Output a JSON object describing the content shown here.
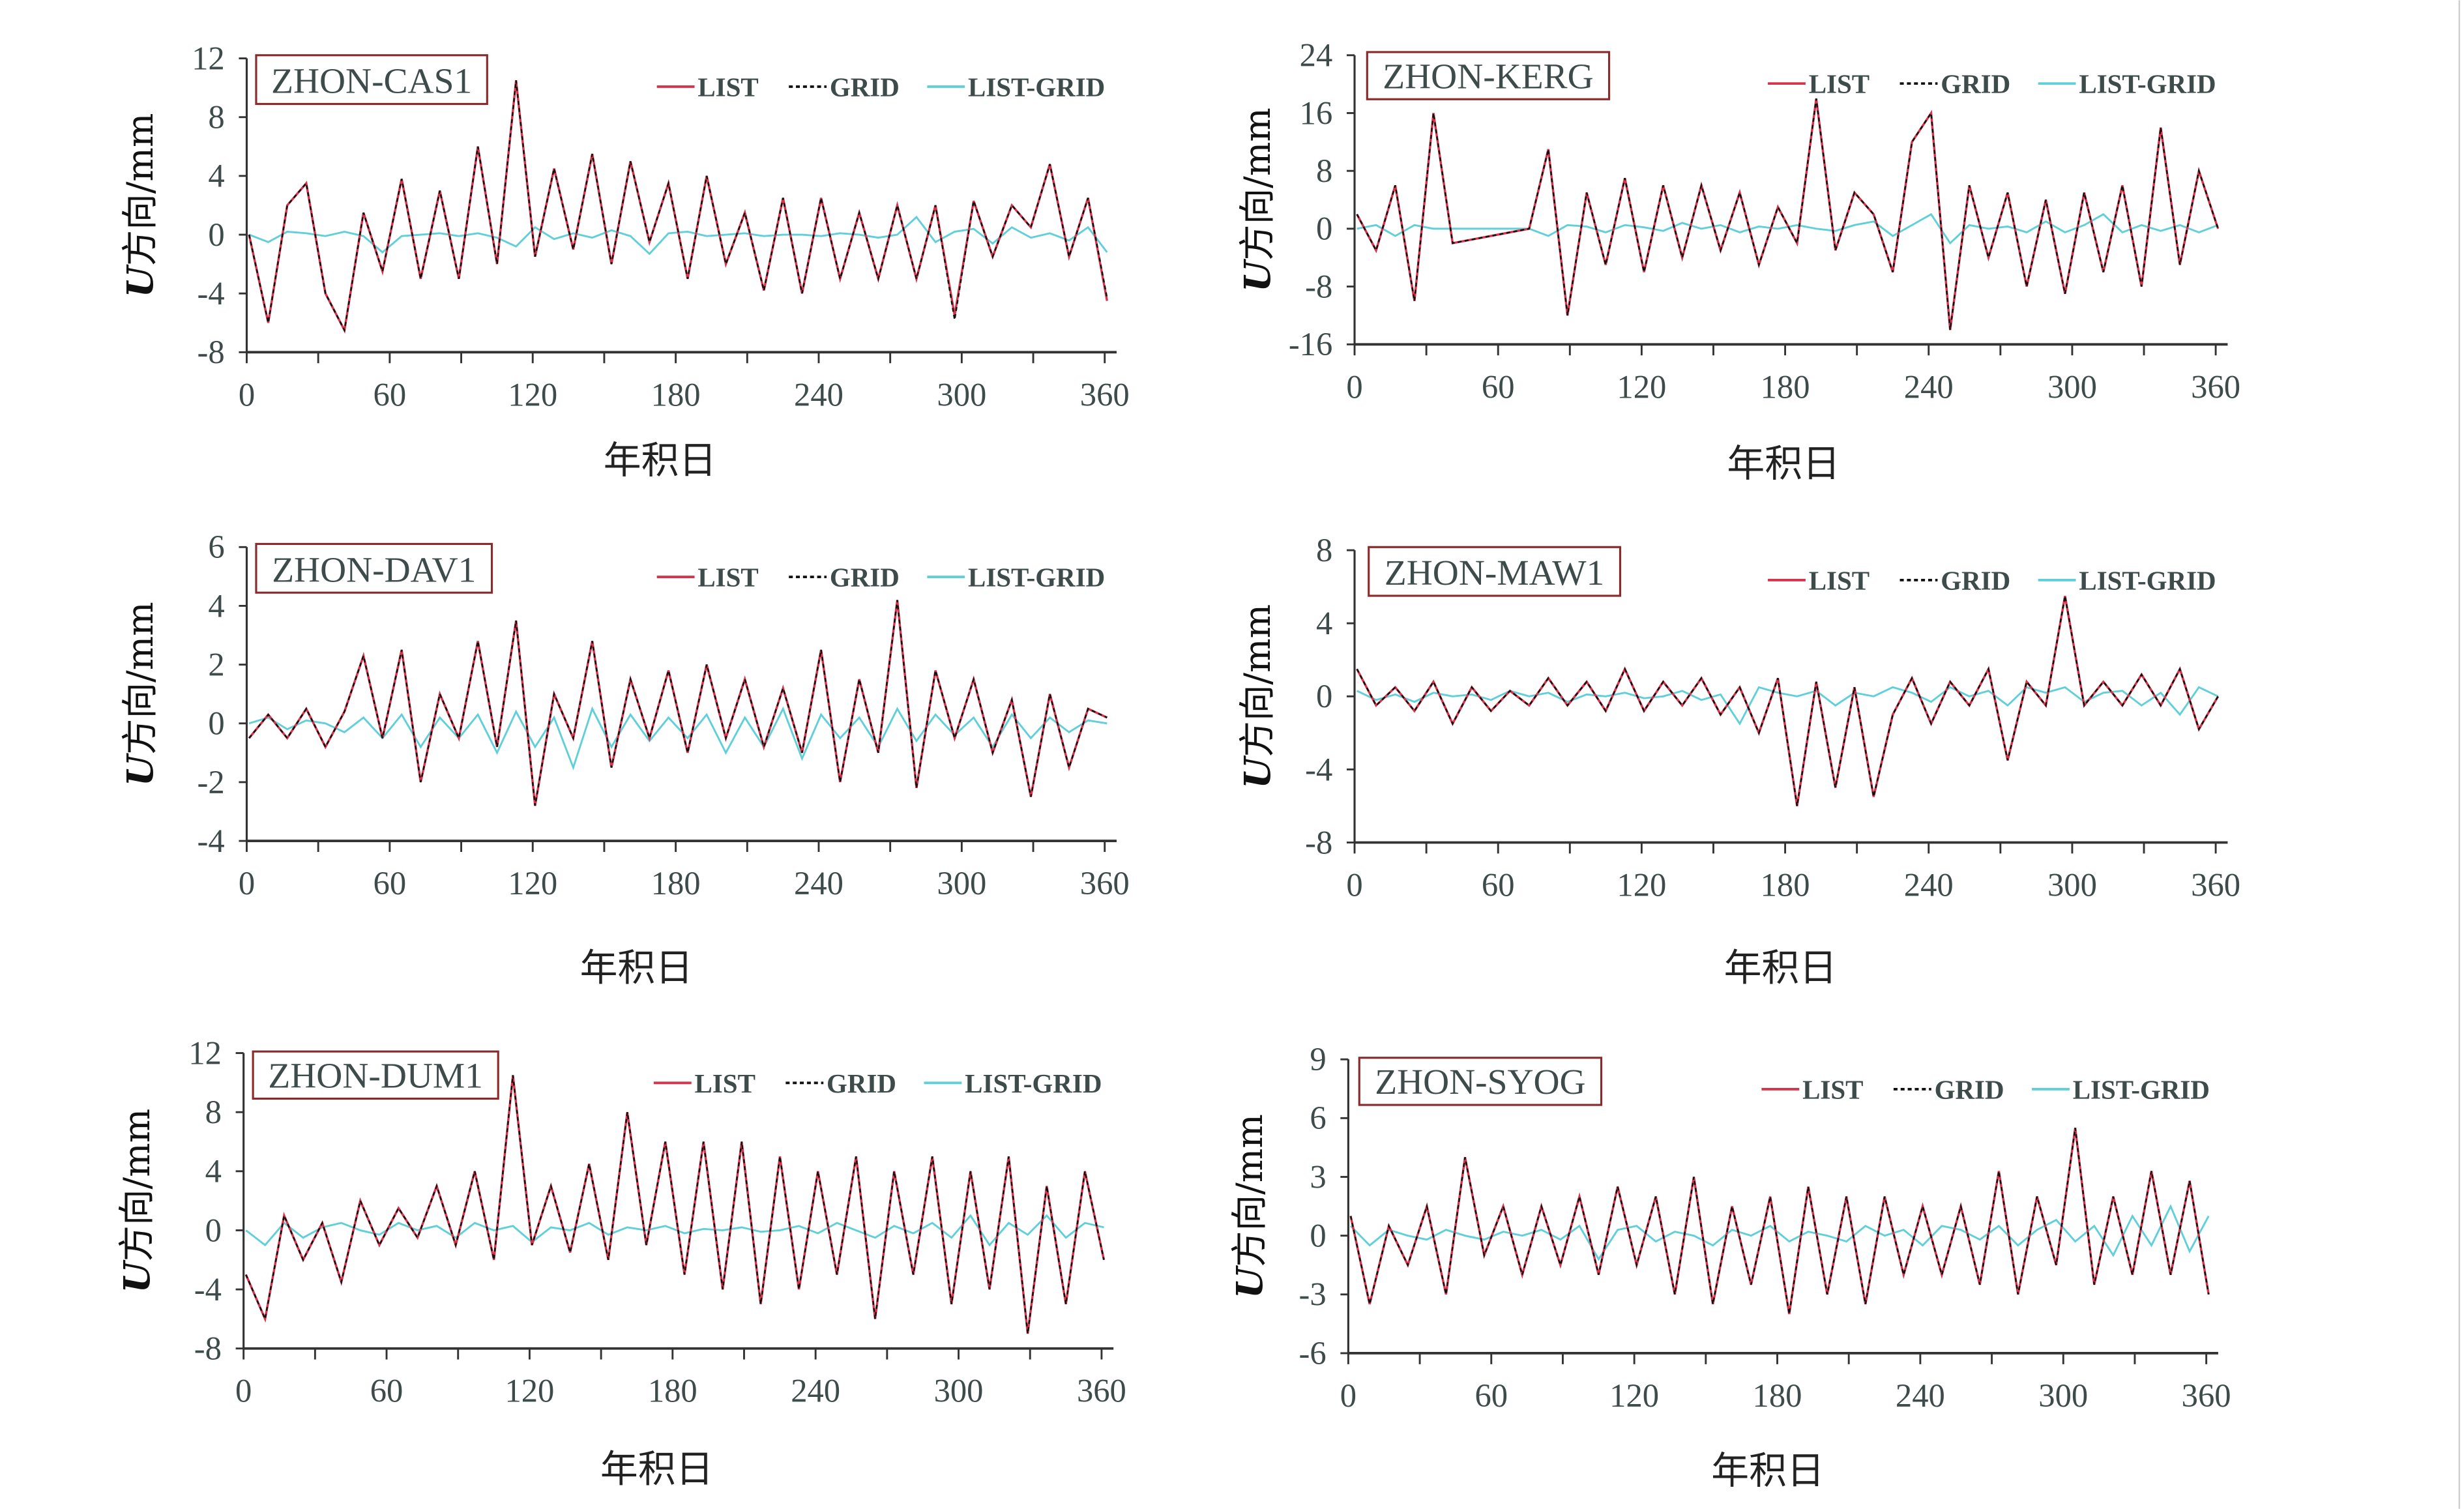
{
  "chart_data": [
    {
      "type": "line",
      "title": "ZHON-CAS1",
      "xlabel": "年积日",
      "ylabel_var": "U",
      "ylabel_rest": "方向/mm",
      "x_start": 1,
      "x_step": 8,
      "xlim": [
        0,
        365
      ],
      "ylim": [
        -8,
        12
      ],
      "x_ticks": [
        0,
        60,
        120,
        180,
        240,
        300,
        360
      ],
      "y_ticks": [
        -8,
        -4,
        0,
        4,
        8,
        12
      ],
      "legend_position": "top-right",
      "series": [
        {
          "name": "LIST",
          "values": [
            0,
            -6,
            2,
            3.5,
            -4,
            -6.5,
            1.5,
            -2.5,
            3.8,
            -3,
            3,
            -3,
            6,
            -2,
            10.5,
            -1.5,
            4.5,
            -1,
            5.5,
            -2,
            5,
            -0.5,
            3.5,
            -3,
            4,
            -2,
            1.5,
            -3.8,
            2.5,
            -4,
            2.5,
            -3,
            1.5,
            -3,
            2,
            -3,
            2,
            -5.5,
            2.3,
            -1.5,
            2,
            0.5,
            4.8,
            -1.5,
            2.5,
            -4.5
          ]
        },
        {
          "name": "GRID",
          "values": [
            0,
            -6,
            2,
            3.5,
            -4,
            -6.5,
            1.5,
            -2.5,
            3.8,
            -3,
            3,
            -3,
            6,
            -2,
            10.5,
            -1.5,
            4.5,
            -1,
            5.5,
            -2,
            5,
            -0.5,
            3.5,
            -3,
            4,
            -2,
            1.5,
            -3.8,
            2.5,
            -4,
            2.5,
            -3,
            1.5,
            -3,
            2,
            -3,
            2,
            -5.8,
            2.3,
            -1.5,
            2,
            0.5,
            4.8,
            -1.5,
            2.5,
            -4.3
          ]
        },
        {
          "name": "LIST-GRID",
          "values": [
            0,
            -0.5,
            0.2,
            0.1,
            -0.1,
            0.2,
            -0.1,
            -1.2,
            -0.1,
            0,
            0.1,
            -0.1,
            0.1,
            -0.2,
            -0.8,
            0.5,
            -0.3,
            0.1,
            -0.2,
            0.3,
            -0.1,
            -1.3,
            0.1,
            0.2,
            -0.1,
            0,
            0.1,
            -0.1,
            0,
            0,
            -0.1,
            0.1,
            0,
            -0.2,
            0,
            1.2,
            -0.5,
            0.2,
            0.4,
            -0.6,
            0.5,
            -0.2,
            0.1,
            -0.4,
            0.5,
            -1.2
          ]
        }
      ]
    },
    {
      "type": "line",
      "title": "ZHON-KERG",
      "xlabel": "年积日",
      "ylabel_var": "U",
      "ylabel_rest": "方向/mm",
      "x_start": 1,
      "x_step": 8,
      "xlim": [
        0,
        365
      ],
      "ylim": [
        -16,
        24
      ],
      "x_ticks": [
        0,
        60,
        120,
        180,
        240,
        300,
        360
      ],
      "y_ticks": [
        -16,
        -8,
        0,
        8,
        16,
        24
      ],
      "legend_position": "top-right",
      "series": [
        {
          "name": "LIST",
          "values": [
            2,
            -3,
            6,
            -10,
            16,
            -2,
            -1.5,
            -1,
            -0.5,
            0,
            11,
            -12,
            5,
            -5,
            7,
            -6,
            6,
            -4,
            6,
            -3,
            5,
            -5,
            3,
            -2,
            18,
            -3,
            5,
            2,
            -6,
            12,
            16,
            -14,
            6,
            -4,
            5,
            -8,
            4,
            -9,
            5,
            -6,
            6,
            -8,
            14,
            -5,
            8,
            0
          ]
        },
        {
          "name": "GRID",
          "values": [
            2,
            -3,
            6,
            -10,
            16,
            -2,
            -1.5,
            -1,
            -0.5,
            0,
            11,
            -12,
            5,
            -5,
            7,
            -6,
            6,
            -4,
            6,
            -3,
            5,
            -5,
            3,
            -2,
            18,
            -3,
            5,
            2,
            -6,
            12,
            16,
            -14,
            6,
            -4,
            5,
            -8,
            4,
            -9,
            5,
            -6,
            6,
            -8,
            14,
            -5,
            8,
            0
          ]
        },
        {
          "name": "LIST-GRID",
          "values": [
            0,
            0.5,
            -1,
            0.5,
            0,
            0,
            0,
            0,
            0,
            0,
            -1,
            0.5,
            0.3,
            -0.5,
            0.5,
            0.2,
            -0.3,
            0.8,
            0,
            0.5,
            -0.5,
            0.3,
            0,
            0.5,
            0,
            -0.3,
            0.5,
            1,
            -1,
            0.5,
            2,
            -2,
            0.5,
            0,
            0.3,
            -0.5,
            1,
            -0.5,
            0.5,
            2,
            -0.5,
            0.5,
            -0.3,
            0.5,
            -0.5,
            0.5
          ]
        }
      ]
    },
    {
      "type": "line",
      "title": "ZHON-DAV1",
      "xlabel": "年积日",
      "ylabel_var": "U",
      "ylabel_rest": "方向/mm",
      "x_start": 1,
      "x_step": 8,
      "xlim": [
        0,
        365
      ],
      "ylim": [
        -4,
        6
      ],
      "x_ticks": [
        0,
        60,
        120,
        180,
        240,
        300,
        360
      ],
      "y_ticks": [
        -4,
        -2,
        0,
        2,
        4,
        6
      ],
      "legend_position": "top-right",
      "series": [
        {
          "name": "LIST",
          "values": [
            -0.5,
            0.3,
            -0.5,
            0.5,
            -0.8,
            0.4,
            2.3,
            -0.5,
            2.5,
            -2,
            1,
            -0.5,
            2.8,
            -0.8,
            3.5,
            -2.8,
            1,
            -0.5,
            2.8,
            -1.5,
            1.5,
            -0.5,
            1.8,
            -1,
            2,
            -0.5,
            1.5,
            -0.8,
            1.2,
            -1,
            2.5,
            -2,
            1.5,
            -1,
            4.2,
            -2.2,
            1.8,
            -0.5,
            1.5,
            -1,
            0.8,
            -2.5,
            1,
            -1.5,
            0.5,
            0.2
          ]
        },
        {
          "name": "GRID",
          "values": [
            -0.5,
            0.3,
            -0.5,
            0.5,
            -0.8,
            0.4,
            2.3,
            -0.5,
            2.5,
            -2,
            1,
            -0.5,
            2.8,
            -0.8,
            3.5,
            -2.8,
            1,
            -0.5,
            2.8,
            -1.5,
            1.5,
            -0.5,
            1.8,
            -1,
            2,
            -0.5,
            1.5,
            -0.8,
            1.2,
            -1,
            2.5,
            -2,
            1.5,
            -1,
            4.2,
            -2.2,
            1.8,
            -0.5,
            1.5,
            -1,
            0.8,
            -2.5,
            1,
            -1.5,
            0.5,
            0.2
          ]
        },
        {
          "name": "LIST-GRID",
          "values": [
            0,
            0.2,
            -0.2,
            0.1,
            0,
            -0.3,
            0.2,
            -0.5,
            0.3,
            -0.8,
            0.2,
            -0.5,
            0.3,
            -1,
            0.4,
            -0.8,
            0.2,
            -1.5,
            0.5,
            -0.8,
            0.3,
            -0.6,
            0.2,
            -0.5,
            0.3,
            -1,
            0.2,
            -0.8,
            0.5,
            -1.2,
            0.3,
            -0.5,
            0.2,
            -0.8,
            0.5,
            -0.6,
            0.3,
            -0.4,
            0.2,
            -0.8,
            0.3,
            -0.5,
            0.2,
            -0.3,
            0.1,
            0
          ]
        }
      ]
    },
    {
      "type": "line",
      "title": "ZHON-MAW1",
      "xlabel": "年积日",
      "ylabel_var": "U",
      "ylabel_rest": "方向/mm",
      "x_start": 1,
      "x_step": 8,
      "xlim": [
        0,
        365
      ],
      "ylim": [
        -8,
        8
      ],
      "x_ticks": [
        0,
        60,
        120,
        180,
        240,
        300,
        360
      ],
      "y_ticks": [
        -8,
        -4,
        0,
        4,
        8
      ],
      "legend_position": "top-right",
      "series": [
        {
          "name": "LIST",
          "values": [
            1.5,
            -0.5,
            0.5,
            -0.8,
            0.8,
            -1.5,
            0.5,
            -0.8,
            0.3,
            -0.5,
            1,
            -0.5,
            0.8,
            -0.8,
            1.5,
            -0.8,
            0.8,
            -0.5,
            1,
            -1,
            0.5,
            -2,
            1,
            -6,
            0.8,
            -5,
            0.5,
            -5.5,
            -1,
            1,
            -1.5,
            0.8,
            -0.5,
            1.5,
            -3.5,
            0.8,
            -0.5,
            5.5,
            -0.5,
            0.8,
            -0.5,
            1.2,
            -0.5,
            1.5,
            -1.8,
            0
          ]
        },
        {
          "name": "GRID",
          "values": [
            1.5,
            -0.5,
            0.5,
            -0.8,
            0.8,
            -1.5,
            0.5,
            -0.8,
            0.3,
            -0.5,
            1,
            -0.5,
            0.8,
            -0.8,
            1.5,
            -0.8,
            0.8,
            -0.5,
            1,
            -1,
            0.5,
            -2,
            1,
            -6,
            0.8,
            -5,
            0.5,
            -5.5,
            -1,
            1,
            -1.5,
            0.8,
            -0.5,
            1.5,
            -3.5,
            0.8,
            -0.5,
            5.5,
            -0.5,
            0.8,
            -0.5,
            1.2,
            -0.5,
            1.5,
            -1.8,
            0
          ]
        },
        {
          "name": "LIST-GRID",
          "values": [
            0.3,
            -0.2,
            0.1,
            -0.3,
            0.2,
            0,
            0.1,
            -0.2,
            0.3,
            0,
            0.2,
            -0.3,
            0.1,
            0,
            0.2,
            -0.1,
            0,
            0.3,
            -0.2,
            0.1,
            -1.5,
            0.5,
            0.2,
            0,
            0.3,
            -0.5,
            0.2,
            0,
            0.5,
            0.2,
            -0.3,
            0.5,
            0,
            0.3,
            -0.5,
            0.5,
            0.2,
            0.5,
            -0.3,
            0.2,
            0.3,
            -0.5,
            0.2,
            -1,
            0.5,
            0
          ]
        }
      ]
    },
    {
      "type": "line",
      "title": "ZHON-DUM1",
      "xlabel": "年积日",
      "ylabel_var": "U",
      "ylabel_rest": "方向/mm",
      "x_start": 1,
      "x_step": 8,
      "xlim": [
        0,
        365
      ],
      "ylim": [
        -8,
        12
      ],
      "x_ticks": [
        0,
        60,
        120,
        180,
        240,
        300,
        360
      ],
      "y_ticks": [
        -8,
        -4,
        0,
        4,
        8,
        12
      ],
      "legend_position": "top-right",
      "series": [
        {
          "name": "LIST",
          "values": [
            -3,
            -6,
            1,
            -2,
            0.5,
            -3.5,
            2,
            -1,
            1.5,
            -0.5,
            3,
            -1,
            4,
            -2,
            10.5,
            -1,
            3,
            -1.5,
            4.5,
            -2,
            8,
            -1,
            6,
            -3,
            6,
            -4,
            6,
            -5,
            5,
            -4,
            4,
            -3,
            5,
            -6,
            4,
            -3,
            5,
            -5,
            4,
            -4,
            5,
            -7,
            3,
            -5,
            4,
            -2
          ]
        },
        {
          "name": "GRID",
          "values": [
            -3,
            -6,
            1,
            -2,
            0.5,
            -3.5,
            2,
            -1,
            1.5,
            -0.5,
            3,
            -1,
            4,
            -2,
            10.5,
            -1,
            3,
            -1.5,
            4.5,
            -2,
            8,
            -1,
            6,
            -3,
            6,
            -4,
            6,
            -5,
            5,
            -4,
            4,
            -3,
            5,
            -6,
            4,
            -3,
            5,
            -5,
            4,
            -4,
            5,
            -7,
            3,
            -5,
            4,
            -2
          ]
        },
        {
          "name": "LIST-GRID",
          "values": [
            0,
            -1,
            0.5,
            -0.5,
            0.2,
            0.5,
            0,
            -0.3,
            0.5,
            0,
            0.3,
            -0.5,
            0.5,
            0,
            0.3,
            -0.8,
            0.2,
            0,
            0.5,
            -0.3,
            0.2,
            0,
            0.3,
            -0.2,
            0.1,
            0,
            0.2,
            -0.1,
            0,
            0.3,
            -0.2,
            0.5,
            0,
            -0.5,
            0.3,
            -0.2,
            0.5,
            -0.5,
            1,
            -1,
            0.5,
            -0.3,
            1,
            -0.5,
            0.5,
            0.2
          ]
        }
      ]
    },
    {
      "type": "line",
      "title": "ZHON-SYOG",
      "xlabel": "年积日",
      "ylabel_var": "U",
      "ylabel_rest": "方向/mm",
      "x_start": 1,
      "x_step": 8,
      "xlim": [
        0,
        365
      ],
      "ylim": [
        -6,
        9
      ],
      "x_ticks": [
        0,
        60,
        120,
        180,
        240,
        300,
        360
      ],
      "y_ticks": [
        -6,
        -3,
        0,
        3,
        6,
        9
      ],
      "legend_position": "top-right",
      "series": [
        {
          "name": "LIST",
          "values": [
            1,
            -3.5,
            0.5,
            -1.5,
            1.5,
            -3,
            4,
            -1,
            1.5,
            -2,
            1.5,
            -1.5,
            2,
            -2,
            2.5,
            -1.5,
            2,
            -3,
            3,
            -3.5,
            1.5,
            -2.5,
            2,
            -4,
            2.5,
            -3,
            2,
            -3.5,
            2,
            -2,
            1.5,
            -2,
            1.5,
            -2.5,
            3.3,
            -3,
            2,
            -1.5,
            5.5,
            -2.5,
            2,
            -2,
            3.3,
            -2,
            2.8,
            -3
          ]
        },
        {
          "name": "GRID",
          "values": [
            1,
            -3.5,
            0.5,
            -1.5,
            1.5,
            -3,
            4,
            -1,
            1.5,
            -2,
            1.5,
            -1.5,
            2,
            -2,
            2.5,
            -1.5,
            2,
            -3,
            3,
            -3.5,
            1.5,
            -2.5,
            2,
            -4,
            2.5,
            -3,
            2,
            -3.5,
            2,
            -2,
            1.5,
            -2,
            1.5,
            -2.5,
            3.3,
            -3,
            2,
            -1.5,
            5.5,
            -2.5,
            2,
            -2,
            3.3,
            -2,
            2.8,
            -3
          ]
        },
        {
          "name": "LIST-GRID",
          "values": [
            0.5,
            -0.5,
            0.3,
            0,
            -0.2,
            0.3,
            0,
            -0.2,
            0.2,
            0,
            0.3,
            -0.2,
            0.5,
            -1.2,
            0.3,
            0.5,
            -0.3,
            0.2,
            0,
            -0.5,
            0.3,
            0,
            0.5,
            -0.3,
            0.2,
            0,
            -0.3,
            0.5,
            0,
            0.3,
            -0.5,
            0.5,
            0.3,
            -0.2,
            0.5,
            -0.5,
            0.3,
            0.8,
            -0.3,
            0.5,
            -1,
            1,
            -0.5,
            1.5,
            -0.8,
            1
          ]
        }
      ]
    }
  ],
  "colors": {
    "LIST": "#d8334a",
    "GRID": "#111111",
    "LIST-GRID": "#5fd0da",
    "axis": "#333333",
    "title_border": "#8b2a2a"
  }
}
